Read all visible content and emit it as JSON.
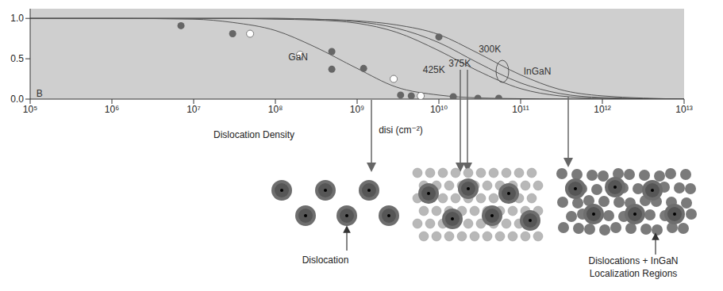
{
  "chart_data": {
    "type": "line",
    "x_label": "Dislocation Density",
    "x_label_unit": "disi (cm⁻²)",
    "log": "x",
    "grid": false,
    "xlim": [
      100000,
      10000000000000
    ],
    "xticks": [
      {
        "value": 100000,
        "label": "10⁵"
      },
      {
        "value": 1000000,
        "label": "10⁶"
      },
      {
        "value": 10000000,
        "label": "10⁷"
      },
      {
        "value": 100000000,
        "label": "10⁸"
      },
      {
        "value": 1000000000,
        "label": "10⁹"
      },
      {
        "value": 10000000000,
        "label": "10¹⁰"
      },
      {
        "value": 100000000000,
        "label": "10¹¹"
      },
      {
        "value": 1000000000000,
        "label": "10¹²"
      },
      {
        "value": 10000000000000,
        "label": "10¹³"
      }
    ],
    "ylim": [
      0,
      1.12
    ],
    "yticks": [
      {
        "value": 0,
        "label": "0.0"
      },
      {
        "value": 0.5,
        "label": "0.5"
      },
      {
        "value": 1,
        "label": "1.0"
      }
    ],
    "series": [
      {
        "type": "line",
        "color": "#555555",
        "line_style": "solid",
        "x": [
          100000,
          1000000,
          10000000,
          30000000,
          100000000,
          300000000,
          1000000000,
          3000000000,
          10000000000,
          30000000000,
          100000000000,
          300000000000,
          1000000000000,
          10000000000000
        ],
        "values": [
          1,
          1,
          0.99,
          0.95,
          0.85,
          0.65,
          0.38,
          0.15,
          0.05,
          0.015,
          0.005,
          0,
          0,
          0
        ]
      },
      {
        "type": "line",
        "color": "#555555",
        "line_style": "solid",
        "x": [
          100000,
          1000000,
          10000000,
          30000000,
          100000000,
          300000000,
          1000000000,
          3000000000,
          10000000000,
          30000000000,
          100000000000,
          300000000000,
          1000000000000,
          10000000000000
        ],
        "values": [
          1,
          1,
          1,
          1,
          1,
          0.99,
          0.97,
          0.92,
          0.8,
          0.57,
          0.3,
          0.12,
          0.04,
          0
        ]
      },
      {
        "type": "line",
        "color": "#555555",
        "line_style": "solid",
        "x": [
          100000,
          1000000,
          10000000,
          30000000,
          100000000,
          300000000,
          1000000000,
          3000000000,
          10000000000,
          30000000000,
          100000000000,
          300000000000,
          1000000000000,
          10000000000000
        ],
        "values": [
          1,
          1,
          1,
          1,
          1,
          0.99,
          0.96,
          0.88,
          0.7,
          0.45,
          0.2,
          0.07,
          0.02,
          0
        ]
      },
      {
        "type": "line",
        "color": "#555555",
        "line_style": "solid",
        "x": [
          100000,
          1000000,
          10000000,
          30000000,
          100000000,
          300000000,
          1000000000,
          3000000000,
          10000000000,
          30000000000,
          100000000000,
          300000000000,
          1000000000000,
          10000000000000
        ],
        "values": [
          1,
          1,
          1,
          1,
          0.99,
          0.98,
          0.94,
          0.83,
          0.6,
          0.35,
          0.13,
          0.04,
          0.01,
          0
        ]
      },
      {
        "type": "scatter",
        "marker": "circle",
        "color": "#666666",
        "x": [
          7000000,
          30000000,
          490000000,
          490000000,
          1200000000,
          3400000000,
          4600000000,
          15000000000,
          10000000000,
          30000000000,
          54000000000
        ],
        "values": [
          0.91,
          0.81,
          0.59,
          0.37,
          0.38,
          0.05,
          0.04,
          0.03,
          0.77,
          0.01,
          0.01
        ]
      },
      {
        "type": "scatter",
        "marker": "open_circle",
        "color": "#ffffff",
        "x": [
          49000000,
          200000000,
          2800000000,
          6000000000
        ],
        "values": [
          0.81,
          0.55,
          0.25,
          0.04
        ]
      }
    ],
    "annotations": [
      {
        "text": "B",
        "x": 130000,
        "y": 0.07
      },
      {
        "text": "GaN",
        "x": 190000000,
        "y": 0.52
      },
      {
        "text": "300K",
        "x": 42000000000,
        "y": 0.62
      },
      {
        "text": "375K",
        "x": 18000000000,
        "y": 0.44
      },
      {
        "text": "425K",
        "x": 8700000000,
        "y": 0.37
      },
      {
        "text": "InGaN",
        "x": 160000000000,
        "y": 0.35
      }
    ]
  },
  "diagram": {
    "labels": [
      "Dislocation",
      "Dislocations + InGaN",
      "Localization Regions"
    ]
  }
}
